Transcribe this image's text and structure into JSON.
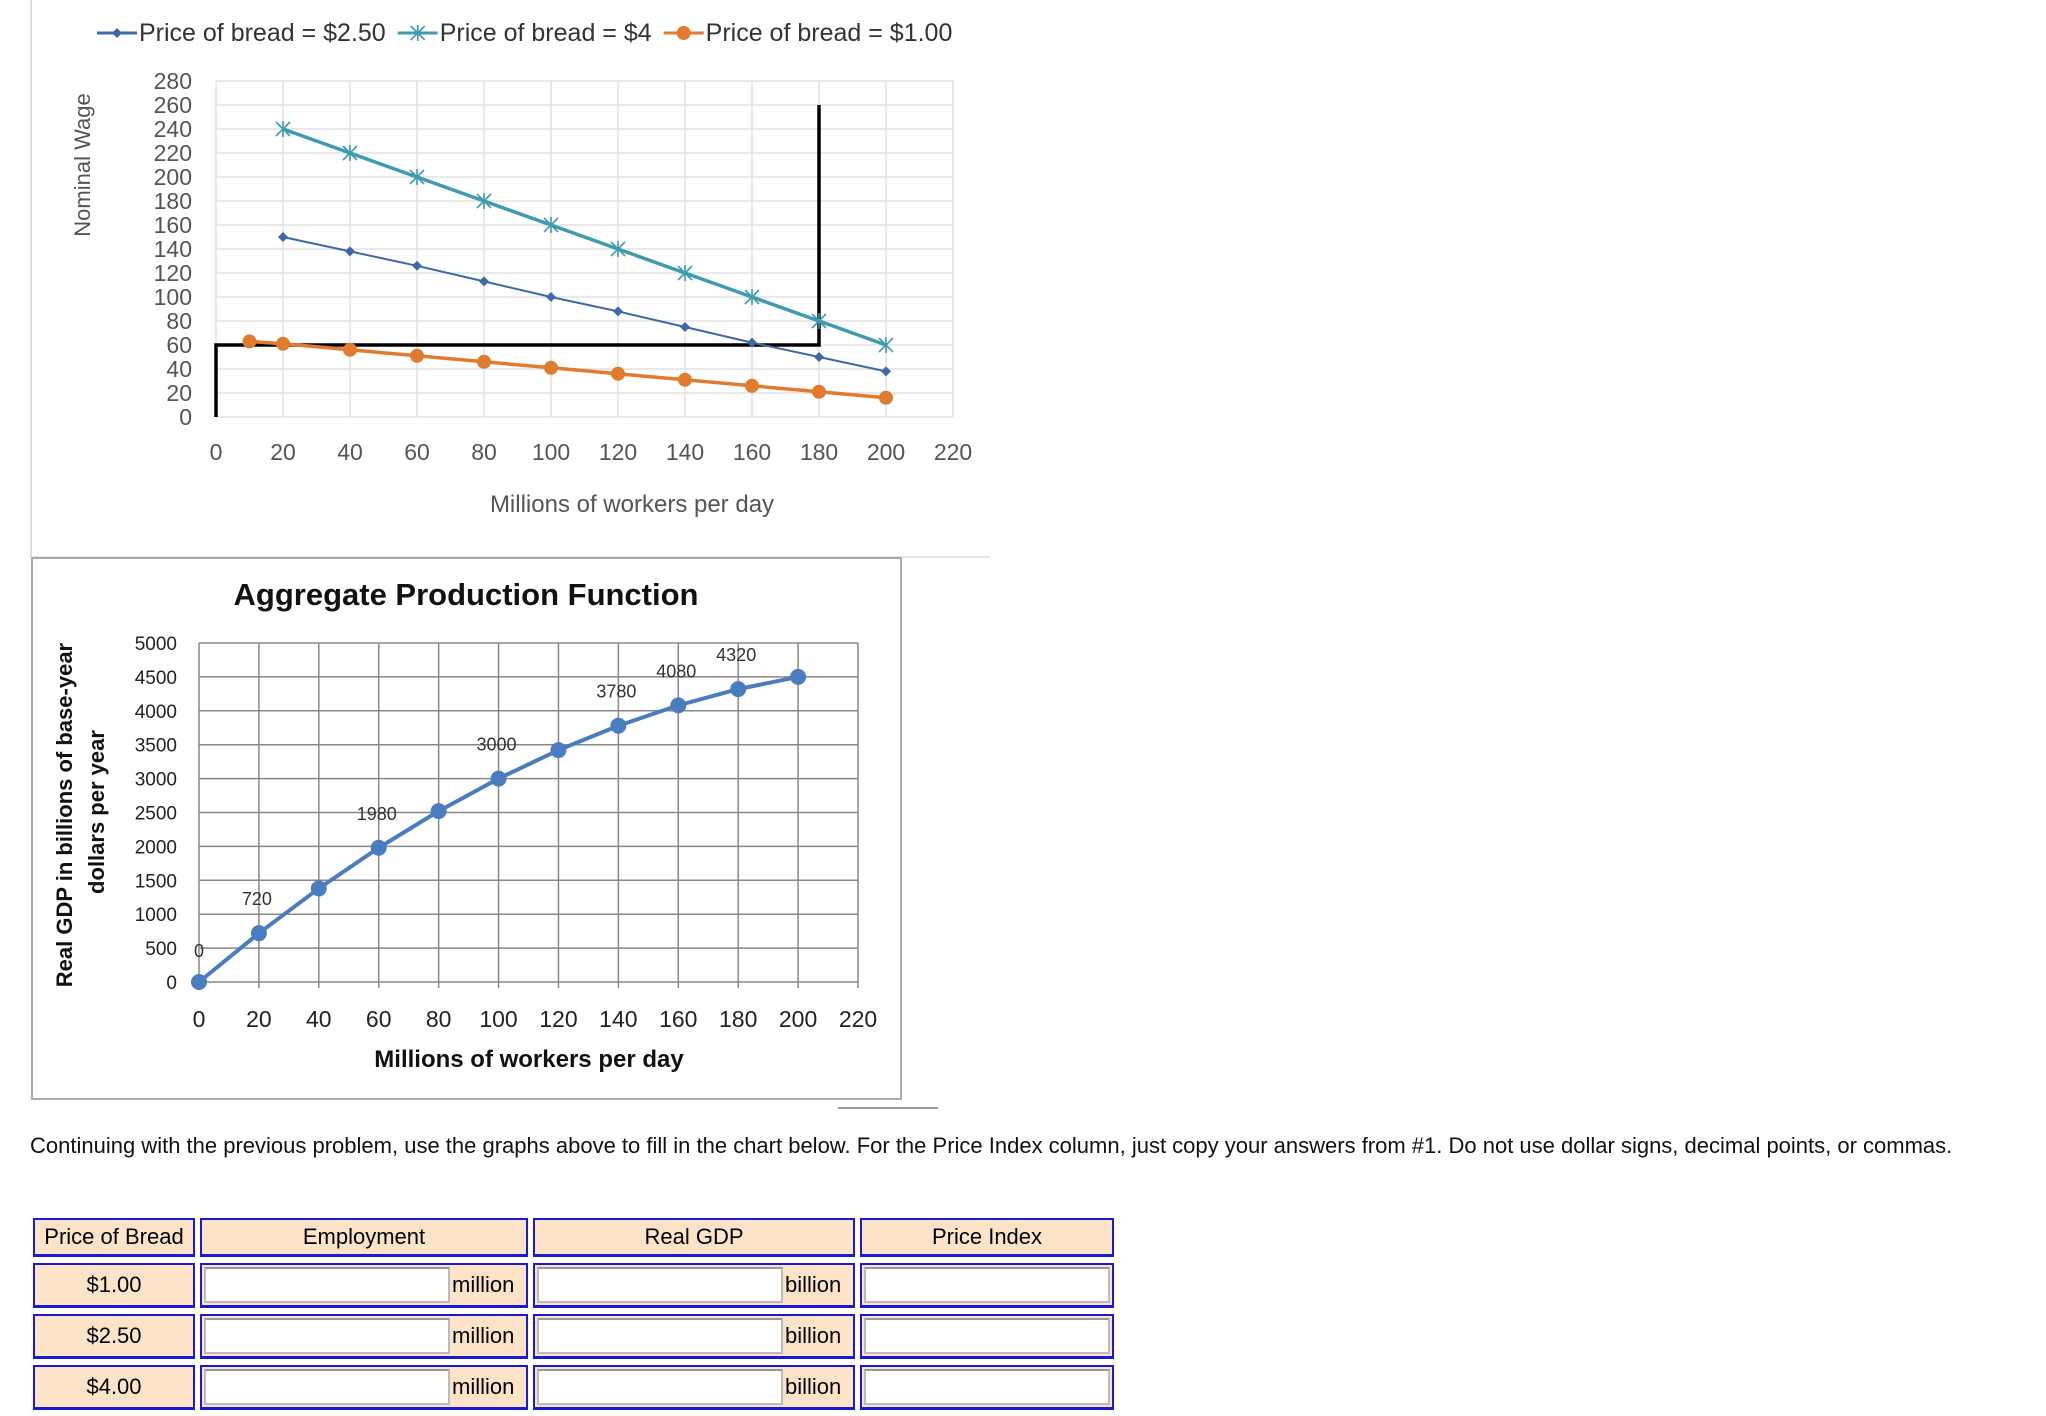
{
  "chart_data": [
    {
      "type": "line",
      "title": "",
      "xlabel": "Millions of workers per day",
      "ylabel": "Nominal Wage",
      "xlim": [
        0,
        220
      ],
      "ylim": [
        0,
        280
      ],
      "x_ticks": [
        "0",
        "20",
        "40",
        "60",
        "80",
        "100",
        "120",
        "140",
        "160",
        "180",
        "200",
        "220"
      ],
      "y_ticks": [
        "0",
        "20",
        "40",
        "60",
        "80",
        "100",
        "120",
        "140",
        "160",
        "180",
        "200",
        "220",
        "240",
        "260",
        "280"
      ],
      "grid": true,
      "legend": "top",
      "series": [
        {
          "name": "Price of bread  = $2.50",
          "color": "#3f68a8",
          "marker": "diamond",
          "x": [
            20,
            40,
            60,
            80,
            100,
            120,
            140,
            160,
            180,
            200
          ],
          "y": [
            150,
            138,
            126,
            113,
            100,
            88,
            75,
            62,
            50,
            38
          ]
        },
        {
          "name": "Price of bread = $4",
          "color": "#3e9bb0",
          "marker": "star",
          "x": [
            20,
            40,
            60,
            80,
            100,
            120,
            140,
            160,
            180,
            200
          ],
          "y": [
            240,
            220,
            200,
            180,
            160,
            140,
            120,
            100,
            80,
            60
          ]
        },
        {
          "name": "Price of bread = $1.00",
          "color": "#e07b2f",
          "marker": "circle",
          "x": [
            10,
            20,
            40,
            60,
            80,
            100,
            120,
            140,
            160,
            180,
            200
          ],
          "y": [
            63,
            61,
            56,
            51,
            46,
            41,
            36,
            31,
            26,
            21,
            16
          ]
        }
      ],
      "annotation_lines": [
        {
          "color": "#000000",
          "x": [
            0,
            0,
            180,
            180
          ],
          "y": [
            0,
            60,
            60,
            260
          ]
        }
      ]
    },
    {
      "type": "line",
      "title": "Aggregate Production Function",
      "xlabel": "Millions of workers per day",
      "ylabel": "Real GDP in billions of base-year dollars per year",
      "xlim": [
        0,
        220
      ],
      "ylim": [
        0,
        5000
      ],
      "x_ticks": [
        "0",
        "20",
        "40",
        "60",
        "80",
        "100",
        "120",
        "140",
        "160",
        "180",
        "200",
        "220"
      ],
      "y_ticks": [
        "0",
        "500",
        "1000",
        "1500",
        "2000",
        "2500",
        "3000",
        "3500",
        "4000",
        "4500",
        "5000"
      ],
      "grid": true,
      "series": [
        {
          "color": "#4a7cc0",
          "x": [
            0,
            20,
            40,
            60,
            80,
            100,
            120,
            140,
            160,
            180,
            200
          ],
          "y": [
            0,
            720,
            1380,
            1980,
            2520,
            3000,
            3420,
            3780,
            4080,
            4320,
            4500
          ],
          "data_labels": [
            "0",
            "720",
            "",
            "1980",
            "",
            "3000",
            "",
            "3780",
            "4080",
            "4320",
            ""
          ]
        }
      ]
    }
  ],
  "prompt": "Continuing with the previous problem, use the graphs above to fill in the chart below. For the Price Index column, just copy your answers from #1. Do not use dollar signs, decimal points, or commas.",
  "table": {
    "headers": [
      "Price of Bread",
      "Employment",
      "Real GDP",
      "Price Index"
    ],
    "rows": [
      {
        "price": "$1.00",
        "employment": "",
        "employment_unit": "million",
        "gdp": "",
        "gdp_unit": "billion",
        "price_index": ""
      },
      {
        "price": "$2.50",
        "employment": "",
        "employment_unit": "million",
        "gdp": "",
        "gdp_unit": "billion",
        "price_index": ""
      },
      {
        "price": "$4.00",
        "employment": "",
        "employment_unit": "million",
        "gdp": "",
        "gdp_unit": "billion",
        "price_index": ""
      }
    ]
  }
}
